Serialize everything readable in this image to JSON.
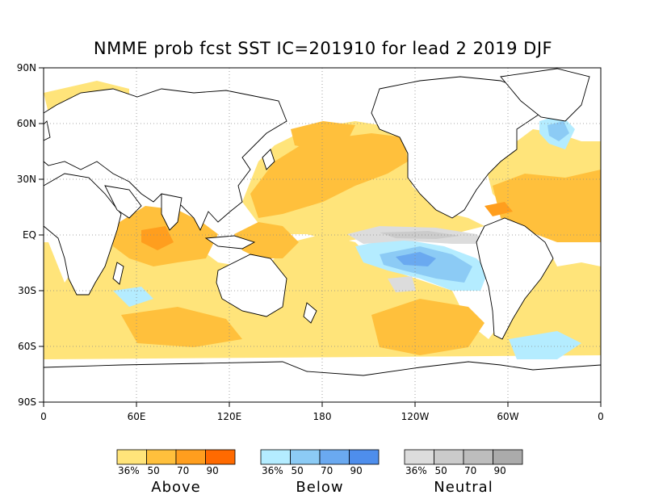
{
  "title": "NMME prob fcst SST IC=201910 for lead 2 2019 DJF",
  "map": {
    "lat_labels": [
      "90N",
      "60N",
      "30N",
      "EQ",
      "30S",
      "60S",
      "90S"
    ],
    "lon_labels": [
      "0",
      "60E",
      "120E",
      "180",
      "120W",
      "60W",
      "0"
    ]
  },
  "legend": [
    {
      "name": "Above",
      "ticks": [
        "36%",
        "50",
        "70",
        "90"
      ],
      "colors": [
        "#FFE47A",
        "#FFC03C",
        "#FF9E1E",
        "#FF6A00"
      ]
    },
    {
      "name": "Below",
      "ticks": [
        "36%",
        "50",
        "70",
        "90"
      ],
      "colors": [
        "#B4ECFF",
        "#8CCBF5",
        "#6AA9F0",
        "#4E8EEC"
      ]
    },
    {
      "name": "Neutral",
      "ticks": [
        "36%",
        "50",
        "70",
        "90"
      ],
      "colors": [
        "#DCDCDC",
        "#CBCBCB",
        "#BDBDBD",
        "#ABABAB"
      ]
    }
  ]
}
